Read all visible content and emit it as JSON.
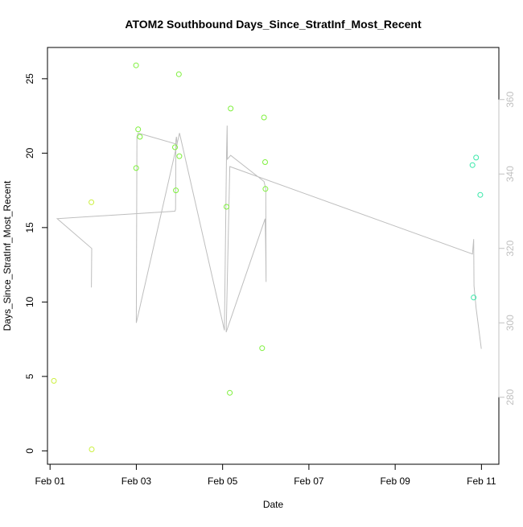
{
  "chart_data": {
    "type": "scatter",
    "title": "ATOM2 Southbound Days_Since_StratInf_Most_Recent",
    "xlabel": "Date",
    "ylabel": "Days_Since_StratInf_Most_Recent",
    "y2label": "",
    "grid": false,
    "xlim": [
      "2024-01-31T22:34",
      "2024-02-11T09:41"
    ],
    "ylim": [
      -0.9,
      27.1
    ],
    "y2lim": [
      262,
      374
    ],
    "x_ticks": [
      "Feb 01",
      "Feb 03",
      "Feb 05",
      "Feb 07",
      "Feb 09",
      "Feb 11"
    ],
    "x_tick_values": [
      "2024-02-01T00:00",
      "2024-02-03T00:00",
      "2024-02-05T00:00",
      "2024-02-07T00:00",
      "2024-02-09T00:00",
      "2024-02-11T00:00"
    ],
    "y_ticks": [
      "0",
      "5",
      "10",
      "15",
      "20",
      "25"
    ],
    "y_tick_values": [
      0,
      5,
      10,
      15,
      20,
      25
    ],
    "y2_ticks": [
      "280",
      "300",
      "320",
      "340",
      "360"
    ],
    "y2_tick_values": [
      280,
      300,
      320,
      340,
      360
    ],
    "colors": {
      "yellow": "#ccf040",
      "green": "#7ef03c",
      "teal": "#36e8a8",
      "line": "#bebebe",
      "right_axis": "#c0c0c0"
    },
    "series": [
      {
        "marker": "open-circle",
        "points": [
          {
            "x": "2024-02-01T02:10",
            "y": 4.7,
            "color": "yellow"
          },
          {
            "x": "2024-02-01T23:00",
            "y": 16.7,
            "color": "yellow"
          },
          {
            "x": "2024-02-01T23:10",
            "y": 0.1,
            "color": "yellow"
          },
          {
            "x": "2024-02-02T23:50",
            "y": 25.9,
            "color": "green"
          },
          {
            "x": "2024-02-02T23:55",
            "y": 19.0,
            "color": "green"
          },
          {
            "x": "2024-02-03T01:00",
            "y": 21.6,
            "color": "green"
          },
          {
            "x": "2024-02-03T02:00",
            "y": 21.1,
            "color": "green"
          },
          {
            "x": "2024-02-03T21:30",
            "y": 20.4,
            "color": "green"
          },
          {
            "x": "2024-02-03T22:00",
            "y": 17.5,
            "color": "green"
          },
          {
            "x": "2024-02-03T23:40",
            "y": 25.3,
            "color": "green"
          },
          {
            "x": "2024-02-03T23:55",
            "y": 19.8,
            "color": "green"
          },
          {
            "x": "2024-02-05T02:10",
            "y": 16.4,
            "color": "green"
          },
          {
            "x": "2024-02-05T04:00",
            "y": 3.9,
            "color": "green"
          },
          {
            "x": "2024-02-05T04:30",
            "y": 23.0,
            "color": "green"
          },
          {
            "x": "2024-02-05T22:00",
            "y": 6.9,
            "color": "green"
          },
          {
            "x": "2024-02-05T23:00",
            "y": 22.4,
            "color": "green"
          },
          {
            "x": "2024-02-05T23:40",
            "y": 19.4,
            "color": "green"
          },
          {
            "x": "2024-02-05T23:50",
            "y": 17.6,
            "color": "green"
          },
          {
            "x": "2024-02-10T19:00",
            "y": 19.2,
            "color": "teal"
          },
          {
            "x": "2024-02-10T19:40",
            "y": 10.3,
            "color": "teal"
          },
          {
            "x": "2024-02-10T21:00",
            "y": 19.7,
            "color": "teal"
          },
          {
            "x": "2024-02-10T23:20",
            "y": 17.2,
            "color": "teal"
          }
        ]
      },
      {
        "type": "line",
        "axis": "right",
        "color": "line",
        "points": [
          {
            "x": "2024-02-01T23:00",
            "y": 309.5
          },
          {
            "x": "2024-02-01T23:10",
            "y": 320.0
          },
          {
            "x": "2024-02-01T04:00",
            "y": 328.0
          },
          {
            "x": "2024-02-03T21:30",
            "y": 330.0
          },
          {
            "x": "2024-02-03T21:50",
            "y": 330.5
          },
          {
            "x": "2024-02-03T22:00",
            "y": 349.0
          },
          {
            "x": "2024-02-03T22:20",
            "y": 350.0
          },
          {
            "x": "2024-02-03T22:40",
            "y": 348.0
          },
          {
            "x": "2024-02-03T01:00",
            "y": 351.0
          },
          {
            "x": "2024-02-03T00:20",
            "y": 350.0
          },
          {
            "x": "2024-02-03T00:00",
            "y": 300.0
          },
          {
            "x": "2024-02-04T00:00",
            "y": 351.0
          },
          {
            "x": "2024-02-05T01:00",
            "y": 298.0
          },
          {
            "x": "2024-02-05T02:10",
            "y": 345.0
          },
          {
            "x": "2024-02-05T02:30",
            "y": 353.0
          },
          {
            "x": "2024-02-05T02:40",
            "y": 344.0
          },
          {
            "x": "2024-02-05T04:30",
            "y": 345.0
          },
          {
            "x": "2024-02-05T23:00",
            "y": 338.0
          },
          {
            "x": "2024-02-06T00:00",
            "y": 336.0
          },
          {
            "x": "2024-02-06T00:10",
            "y": 311.0
          },
          {
            "x": "2024-02-05T23:55",
            "y": 322.0
          },
          {
            "x": "2024-02-05T23:40",
            "y": 328.0
          },
          {
            "x": "2024-02-05T02:00",
            "y": 297.5
          },
          {
            "x": "2024-02-05T04:00",
            "y": 342.0
          },
          {
            "x": "2024-02-10T19:00",
            "y": 318.5
          },
          {
            "x": "2024-02-10T19:40",
            "y": 322.5
          },
          {
            "x": "2024-02-10T19:50",
            "y": 310.0
          },
          {
            "x": "2024-02-10T21:00",
            "y": 304.0
          },
          {
            "x": "2024-02-10T23:55",
            "y": 293.0
          }
        ]
      }
    ]
  }
}
